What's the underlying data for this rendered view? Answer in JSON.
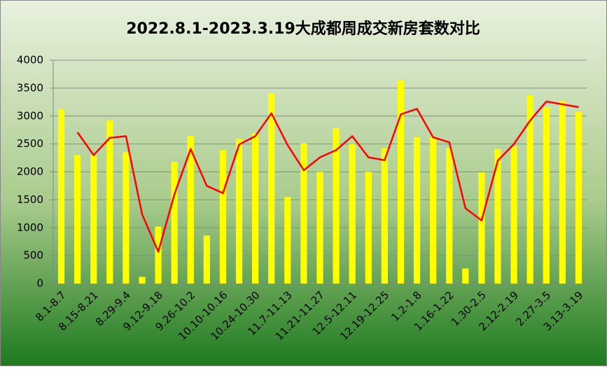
{
  "chart_data": {
    "type": "bar",
    "title": "2022.8.1-2023.3.19大成都周成交新房套数对比",
    "categories": [
      "8.1-8.7",
      null,
      "8.15-8.21",
      null,
      "8.29-9.4",
      null,
      "9.12-9.18",
      null,
      "9.26-10.2",
      null,
      "10.10-10.16",
      null,
      "10.24-10.30",
      null,
      "11.7-11.13",
      null,
      "11.21-11.27",
      null,
      "12.5-12.11",
      null,
      "12.19-12.25",
      null,
      "1.2-1.8",
      null,
      "1.16-1.22",
      null,
      "1.30-2.5",
      null,
      "2.12-2.19",
      null,
      "2.27-3.5",
      null,
      "3.13-3.19"
    ],
    "series": [
      {
        "type": "bar",
        "color": "#ffff00",
        "values": [
          3120,
          2300,
          2300,
          2920,
          2350,
          120,
          1020,
          2180,
          2640,
          860,
          2390,
          2590,
          2690,
          3410,
          1550,
          2510,
          2000,
          2780,
          2500,
          2000,
          2420,
          3640,
          2620,
          2620,
          2430,
          270,
          1990,
          2410,
          2460,
          3370,
          3160,
          3270,
          3070
        ]
      },
      {
        "type": "line",
        "color": "#ff0000",
        "values": [
          null,
          2710,
          2300,
          2610,
          2640,
          1240,
          570,
          1600,
          2410,
          1750,
          1620,
          2490,
          2640,
          3050,
          2480,
          2030,
          2260,
          2390,
          2640,
          2260,
          2210,
          3030,
          3130,
          2620,
          2530,
          1350,
          1130,
          2200,
          2500,
          2920,
          3260,
          3210,
          3160
        ]
      }
    ],
    "ylim": [
      0,
      4000
    ],
    "yticks": [
      0,
      500,
      1000,
      1500,
      2000,
      2500,
      3000,
      3500,
      4000
    ],
    "grid": true
  }
}
